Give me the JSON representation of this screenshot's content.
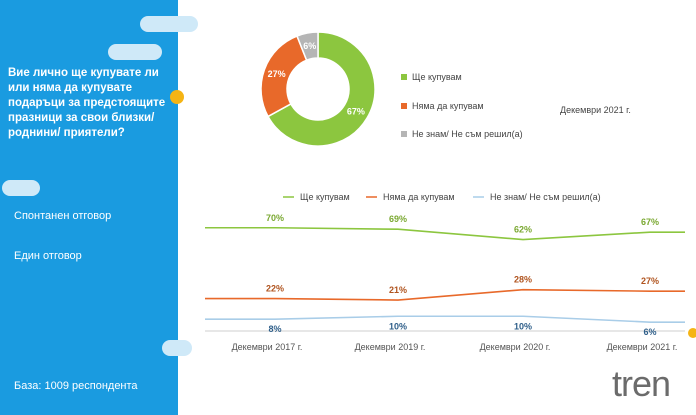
{
  "sidebar": {
    "question": "Вие лично ще купувате ли или няма да купувате подаръци за предстоящите празници за свои близки/ роднини/ приятели?",
    "response_type": "Спонтанен отговор",
    "answer_type": "Един отговор",
    "base": "База:  1009 респондента"
  },
  "colors": {
    "will_buy": "#8cc63f",
    "will_not_buy": "#e8692a",
    "dont_know": "#b5b5b5",
    "dont_know_line": "#a9cde8",
    "sidebar": "#1a9be0",
    "accent_dot": "#f5b414"
  },
  "logo": "tren",
  "chart_data": [
    {
      "type": "pie",
      "subtitle": "Декември 2021 г.",
      "labels": [
        "Ще купувам",
        "Няма да купувам",
        "Не знам/ Не съм решил(а)"
      ],
      "values": [
        67,
        27,
        6
      ],
      "value_labels": [
        "67%",
        "27%",
        "6%"
      ],
      "donut": true,
      "legend_position": "right"
    },
    {
      "type": "line",
      "categories": [
        "Декември 2017 г.",
        "Декември 2019 г.",
        "Декември 2020 г.",
        "Декември 2021 г."
      ],
      "series": [
        {
          "name": "Ще купувам",
          "values": [
            70,
            69,
            62,
            67
          ],
          "labels": [
            "70%",
            "69%",
            "62%",
            "67%"
          ]
        },
        {
          "name": "Няма да купувам",
          "values": [
            22,
            21,
            28,
            27
          ],
          "labels": [
            "22%",
            "21%",
            "28%",
            "27%"
          ]
        },
        {
          "name": "Не знам/ Не съм решил(а)",
          "values": [
            8,
            10,
            10,
            6
          ],
          "labels": [
            "8%",
            "10%",
            "10%",
            "6%"
          ]
        }
      ],
      "ylim": [
        0,
        80
      ],
      "grid": false,
      "legend_position": "top"
    }
  ]
}
